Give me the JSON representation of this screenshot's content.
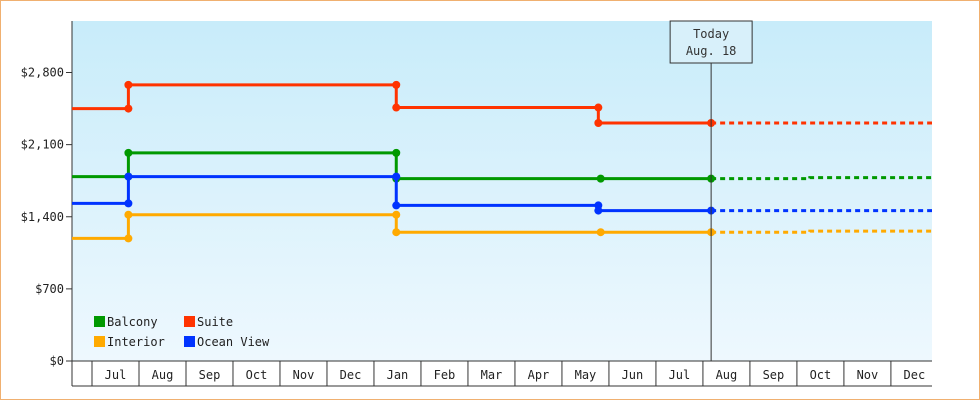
{
  "chart_data": {
    "type": "line",
    "step": true,
    "y_ticks": [
      {
        "value": 0,
        "label": "$0"
      },
      {
        "value": 700,
        "label": "$700"
      },
      {
        "value": 1400,
        "label": "$1,400"
      },
      {
        "value": 2100,
        "label": "$2,100"
      },
      {
        "value": 2800,
        "label": "$2,800"
      }
    ],
    "ylim": [
      0,
      3300
    ],
    "months": [
      "Jul",
      "Aug",
      "Sep",
      "Oct",
      "Nov",
      "Dec",
      "Jan",
      "Feb",
      "Mar",
      "Apr",
      "May",
      "Jun",
      "Jul",
      "Aug",
      "Sep",
      "Oct",
      "Nov",
      "Dec"
    ],
    "xlim": [
      0,
      18.3
    ],
    "today": {
      "label_line1": "Today",
      "label_line2": "Aug. 18",
      "x": 13.6
    },
    "legend": {
      "placement": "bottom-left"
    },
    "series": [
      {
        "name": "Suite",
        "color": "#ff3300",
        "points": [
          [
            0,
            2450
          ],
          [
            1.2,
            2450
          ],
          [
            1.2,
            2680
          ],
          [
            6.9,
            2680
          ],
          [
            6.9,
            2460
          ],
          [
            11.2,
            2460
          ],
          [
            11.2,
            2310
          ],
          [
            13.6,
            2310
          ]
        ],
        "forecast": [
          [
            13.6,
            2310
          ],
          [
            18.3,
            2310
          ]
        ]
      },
      {
        "name": "Balcony",
        "color": "#009900",
        "points": [
          [
            0,
            1790
          ],
          [
            1.2,
            1790
          ],
          [
            1.2,
            2020
          ],
          [
            6.9,
            2020
          ],
          [
            6.9,
            1770
          ],
          [
            11.25,
            1770
          ],
          [
            13.6,
            1770
          ]
        ],
        "forecast": [
          [
            13.6,
            1770
          ],
          [
            15.7,
            1770
          ],
          [
            15.7,
            1780
          ],
          [
            18.3,
            1780
          ]
        ]
      },
      {
        "name": "Ocean View",
        "color": "#0033ff",
        "points": [
          [
            0,
            1530
          ],
          [
            1.2,
            1530
          ],
          [
            1.2,
            1790
          ],
          [
            6.9,
            1790
          ],
          [
            6.9,
            1510
          ],
          [
            11.2,
            1510
          ],
          [
            11.2,
            1460
          ],
          [
            13.6,
            1460
          ]
        ],
        "forecast": [
          [
            13.6,
            1460
          ],
          [
            18.3,
            1460
          ]
        ]
      },
      {
        "name": "Interior",
        "color": "#ffaa00",
        "points": [
          [
            0,
            1190
          ],
          [
            1.2,
            1190
          ],
          [
            1.2,
            1420
          ],
          [
            6.9,
            1420
          ],
          [
            6.9,
            1250
          ],
          [
            11.25,
            1250
          ],
          [
            13.6,
            1250
          ]
        ],
        "forecast": [
          [
            13.6,
            1250
          ],
          [
            15.7,
            1250
          ],
          [
            15.7,
            1260
          ],
          [
            18.3,
            1260
          ]
        ]
      }
    ],
    "legend_order": [
      "Balcony",
      "Suite",
      "Interior",
      "Ocean View"
    ]
  }
}
